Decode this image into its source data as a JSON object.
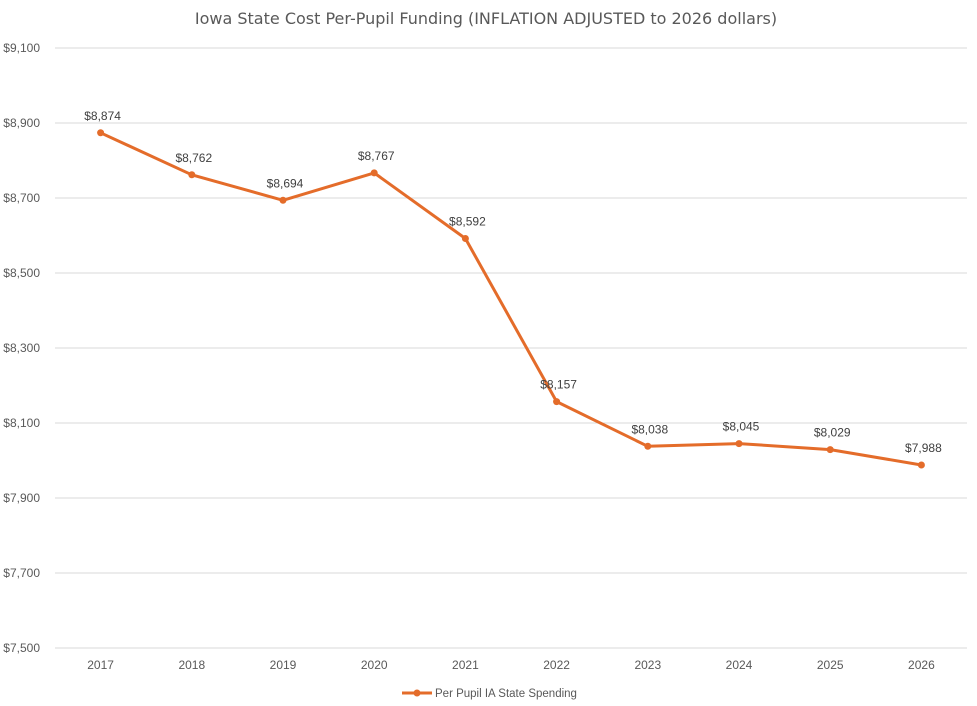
{
  "chart_data": {
    "type": "line",
    "title": "Iowa State Cost Per-Pupil Funding (INFLATION ADJUSTED to 2026 dollars)",
    "xlabel": "",
    "ylabel": "",
    "categories": [
      "2017",
      "2018",
      "2019",
      "2020",
      "2021",
      "2022",
      "2023",
      "2024",
      "2025",
      "2026"
    ],
    "series": [
      {
        "name": "Per Pupil IA State Spending",
        "values": [
          8874,
          8762,
          8694,
          8767,
          8592,
          8157,
          8038,
          8045,
          8029,
          7988
        ],
        "labels": [
          "$8,874",
          "$8,762",
          "$8,694",
          "$8,767",
          "$8,592",
          "$8,157",
          "$8,038",
          "$8,045",
          "$8,029",
          "$7,988"
        ],
        "color": "#e46c2a"
      }
    ],
    "ylim": [
      7500,
      9100
    ],
    "yticks": [
      7500,
      7700,
      7900,
      8100,
      8300,
      8500,
      8700,
      8900,
      9100
    ],
    "ytick_labels": [
      "$7,500",
      "$7,700",
      "$7,900",
      "$8,100",
      "$8,300",
      "$8,500",
      "$8,700",
      "$8,900",
      "$9,100"
    ],
    "grid": true,
    "legend_position": "bottom",
    "gridline_color": "#d9d9d9",
    "text_color": "#595959"
  }
}
